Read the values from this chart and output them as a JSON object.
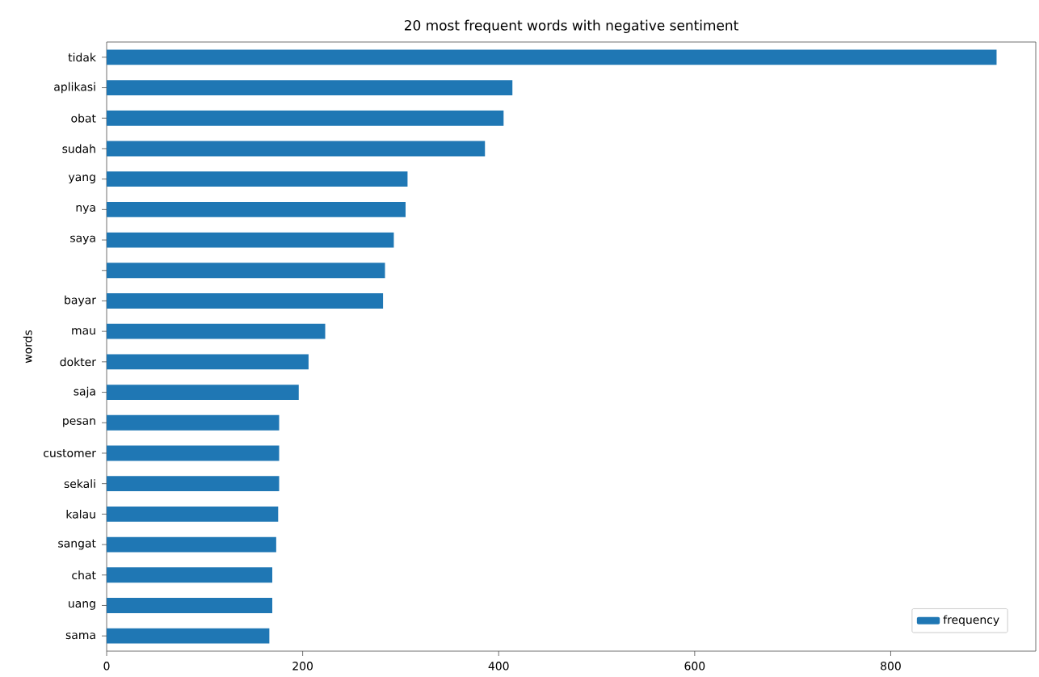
{
  "chart_data": {
    "type": "bar",
    "orientation": "horizontal",
    "title": "20 most frequent words with negative sentiment",
    "ylabel": "words",
    "categories": [
      "tidak",
      "aplikasi",
      "obat",
      "sudah",
      "yang",
      "nya",
      "saya",
      null,
      "bayar",
      "mau",
      "dokter",
      "saja",
      "pesan",
      "customer",
      "sekali",
      "kalau",
      "sangat",
      "chat",
      "uang",
      "sama"
    ],
    "series": [
      {
        "name": "frequency",
        "color": "#1f77b4",
        "values": [
          908,
          414,
          405,
          386,
          307,
          305,
          293,
          284,
          282,
          223,
          206,
          196,
          176,
          176,
          176,
          175,
          173,
          169,
          169,
          166
        ]
      }
    ],
    "xlim": [
      0,
      948
    ],
    "xticks": [
      0,
      200,
      400,
      600,
      800
    ],
    "legend": "bottom right",
    "grid": false
  }
}
